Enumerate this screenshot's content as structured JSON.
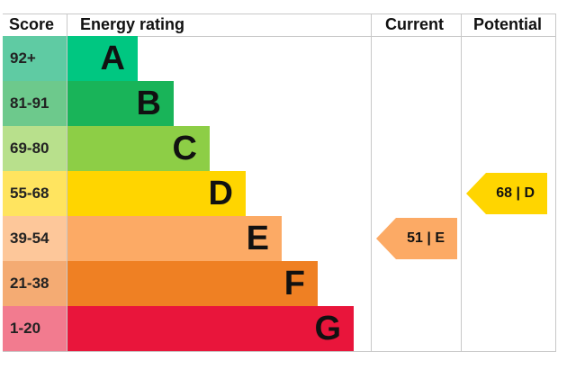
{
  "chart_data": {
    "type": "bar",
    "headers": {
      "score": "Score",
      "energy_rating": "Energy rating",
      "current": "Current",
      "potential": "Potential"
    },
    "bands": [
      {
        "score": "92+",
        "letter": "A",
        "color": "#00c781",
        "score_bg": "#5fcba3"
      },
      {
        "score": "81-91",
        "letter": "B",
        "color": "#19b459",
        "score_bg": "#6dc98c"
      },
      {
        "score": "69-80",
        "letter": "C",
        "color": "#8dce46",
        "score_bg": "#b8e08c"
      },
      {
        "score": "55-68",
        "letter": "D",
        "color": "#ffd500",
        "score_bg": "#ffe45f"
      },
      {
        "score": "39-54",
        "letter": "E",
        "color": "#fcaa65",
        "score_bg": "#fdc79a"
      },
      {
        "score": "21-38",
        "letter": "F",
        "color": "#ef8023",
        "score_bg": "#f4ab73"
      },
      {
        "score": "1-20",
        "letter": "G",
        "color": "#e9153b",
        "score_bg": "#f27b8f"
      }
    ],
    "current": {
      "value": 51,
      "band": "E",
      "label": "51 | E",
      "color": "#fcaa65"
    },
    "potential": {
      "value": 68,
      "band": "D",
      "label": "68 | D",
      "color": "#ffd500"
    }
  }
}
